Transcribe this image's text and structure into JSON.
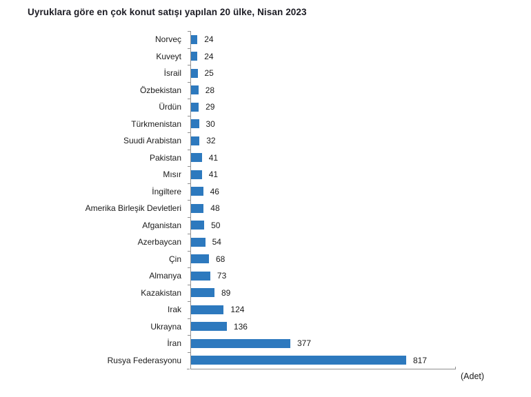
{
  "title": "Uyruklara göre en çok konut satışı yapılan 20 ülke, Nisan 2023",
  "unit_label": "(Adet)",
  "colors": {
    "bar": "#2d79be",
    "axis": "#8f8f8f",
    "title_text": "#1c1c24",
    "label_text": "#1a1a1a",
    "background": "#ffffff"
  },
  "chart_data": {
    "type": "bar",
    "orientation": "horizontal",
    "title": "Uyruklara göre en çok konut satışı yapılan 20 ülke, Nisan 2023",
    "xlabel": "(Adet)",
    "ylabel": "",
    "xlim": [
      0,
      860
    ],
    "grid": false,
    "legend_position": "none",
    "categories": [
      "Norveç",
      "Kuveyt",
      "İsrail",
      "Özbekistan",
      "Ürdün",
      "Türkmenistan",
      "Suudi Arabistan",
      "Pakistan",
      "Mısır",
      "İngiltere",
      "Amerika Birleşik Devletleri",
      "Afganistan",
      "Azerbaycan",
      "Çin",
      "Almanya",
      "Kazakistan",
      "Irak",
      "Ukrayna",
      "İran",
      "Rusya Federasyonu"
    ],
    "values": [
      24,
      24,
      25,
      28,
      29,
      30,
      32,
      41,
      41,
      46,
      48,
      50,
      54,
      68,
      73,
      89,
      124,
      136,
      377,
      817
    ]
  }
}
